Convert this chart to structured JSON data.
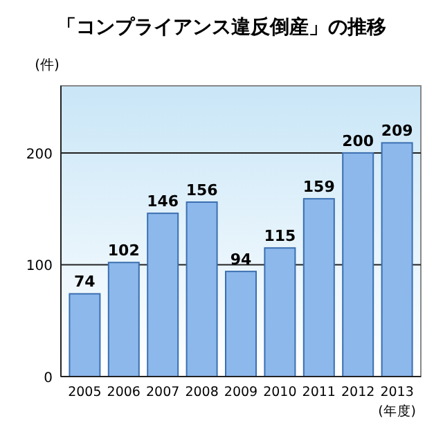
{
  "chart_data": {
    "type": "bar",
    "title": "「コンプライアンス違反倒産」の推移",
    "ylabel": "(件)",
    "xlabel": "(年度)",
    "categories": [
      "2005",
      "2006",
      "2007",
      "2008",
      "2009",
      "2010",
      "2011",
      "2012",
      "2013"
    ],
    "values": [
      74,
      102,
      146,
      156,
      94,
      115,
      159,
      200,
      209
    ],
    "color": "#8db8ec",
    "ylim": [
      0,
      260
    ],
    "yticks": [
      0,
      100,
      200
    ],
    "grid": "y",
    "data_labels": true
  }
}
